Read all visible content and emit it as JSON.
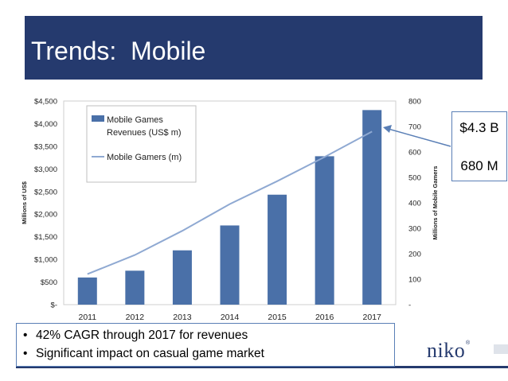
{
  "slide": {
    "title": "Trends:  Mobile",
    "callout": {
      "revenue": "$4.3 B",
      "gamers": "680 M"
    },
    "bullets": [
      "42% CAGR through 2017 for revenues",
      "Significant impact on casual game market"
    ],
    "bullet_glyph": "•",
    "logo": {
      "text": "niko",
      "mark": "®"
    }
  },
  "colors": {
    "title_bg": "#253a6e",
    "bar": "#4a70a8",
    "line": "#8fa9d2",
    "border": "#5a7fb6"
  },
  "chart_data": {
    "type": "bar",
    "categories": [
      "2011",
      "2012",
      "2013",
      "2014",
      "2015",
      "2016",
      "2017"
    ],
    "series": [
      {
        "name": "Mobile Games Revenues (US$ m)",
        "type": "bar",
        "axis": "left",
        "values": [
          600,
          750,
          1200,
          1750,
          2430,
          3280,
          4300
        ]
      },
      {
        "name": "Mobile Gamers (m)",
        "type": "line",
        "axis": "right",
        "values": [
          120,
          195,
          290,
          395,
          485,
          580,
          680
        ]
      }
    ],
    "ylabel": "Millions of US$",
    "y2label": "Millions of Mobile Gamers",
    "ylim": [
      0,
      4500
    ],
    "y2lim": [
      0,
      800
    ],
    "yticks": [
      "$-",
      "$500",
      "$1,000",
      "$1,500",
      "$2,000",
      "$2,500",
      "$3,000",
      "$3,500",
      "$4,000",
      "$4,500"
    ],
    "y2ticks": [
      "-",
      "100",
      "200",
      "300",
      "400",
      "500",
      "600",
      "700",
      "800"
    ],
    "legend": [
      "Mobile Games\nRevenues (US$ m)",
      "Mobile Gamers (m)"
    ],
    "legend_position": "top-left"
  }
}
